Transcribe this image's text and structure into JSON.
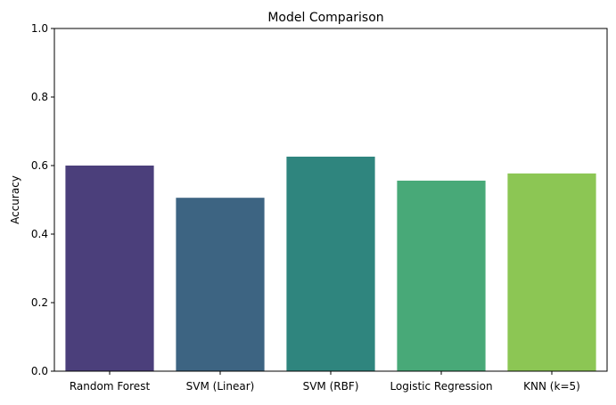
{
  "chart_data": {
    "type": "bar",
    "title": "Model Comparison",
    "xlabel": "",
    "ylabel": "Accuracy",
    "ylim": [
      0,
      1
    ],
    "yticks": [
      0.0,
      0.2,
      0.4,
      0.6,
      0.8,
      1.0
    ],
    "ytick_labels": [
      "0.0",
      "0.2",
      "0.4",
      "0.6",
      "0.8",
      "1.0"
    ],
    "grid": false,
    "categories": [
      "Random Forest",
      "SVM (Linear)",
      "SVM (RBF)",
      "Logistic Regression",
      "KNN (k=5)"
    ],
    "values": [
      0.6,
      0.506,
      0.626,
      0.556,
      0.577
    ],
    "colors": [
      "#4b3f7b",
      "#3d6482",
      "#2f857e",
      "#48a978",
      "#8cc654"
    ]
  }
}
